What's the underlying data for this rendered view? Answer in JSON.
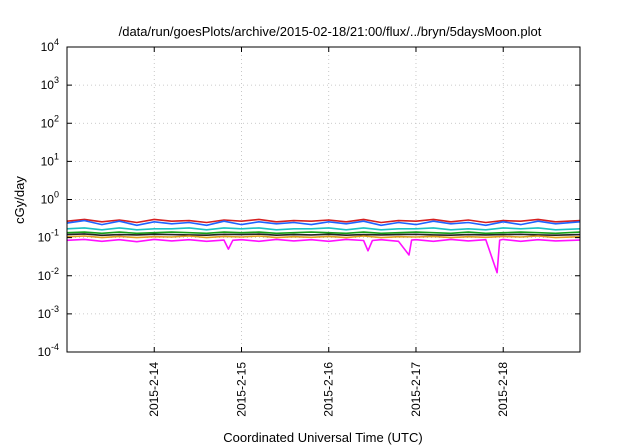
{
  "chart_data": {
    "type": "line",
    "title": "/data/run/goesPlots/archive/2015-02-18/21:00/flux/../bryn/5daysMoon.plot",
    "xlabel": "Coordinated Universal Time (UTC)",
    "ylabel": "cGy/day",
    "yscale": "log",
    "ylim": [
      0.0001,
      10000
    ],
    "xlim": [
      0.0,
      5.88
    ],
    "x_ticks": [
      {
        "value": 1.0,
        "label": "2015-2-14"
      },
      {
        "value": 2.0,
        "label": "2015-2-15"
      },
      {
        "value": 3.0,
        "label": "2015-2-16"
      },
      {
        "value": 4.0,
        "label": "2015-2-17"
      },
      {
        "value": 5.0,
        "label": "2015-2-18"
      }
    ],
    "y_ticks": [
      {
        "value": 0.0001,
        "base": "10",
        "exp": "-4"
      },
      {
        "value": 0.001,
        "base": "10",
        "exp": "-3"
      },
      {
        "value": 0.01,
        "base": "10",
        "exp": "-2"
      },
      {
        "value": 0.1,
        "base": "10",
        "exp": "-1"
      },
      {
        "value": 1,
        "base": "10",
        "exp": "0"
      },
      {
        "value": 10,
        "base": "10",
        "exp": "1"
      },
      {
        "value": 100,
        "base": "10",
        "exp": "2"
      },
      {
        "value": 1000,
        "base": "10",
        "exp": "3"
      },
      {
        "value": 10000,
        "base": "10",
        "exp": "4"
      }
    ],
    "grid": true,
    "series": [
      {
        "color": "#d62020",
        "x": [
          0.0,
          0.2,
          0.4,
          0.6,
          0.8,
          1.0,
          1.2,
          1.4,
          1.6,
          1.8,
          2.0,
          2.2,
          2.4,
          2.6,
          2.8,
          3.0,
          3.2,
          3.4,
          3.6,
          3.8,
          4.0,
          4.2,
          4.4,
          4.6,
          4.8,
          5.0,
          5.2,
          5.4,
          5.6,
          5.88
        ],
        "values": [
          0.27,
          0.3,
          0.26,
          0.29,
          0.25,
          0.3,
          0.27,
          0.28,
          0.25,
          0.29,
          0.27,
          0.3,
          0.26,
          0.28,
          0.27,
          0.29,
          0.26,
          0.3,
          0.25,
          0.28,
          0.27,
          0.3,
          0.26,
          0.29,
          0.25,
          0.28,
          0.27,
          0.3,
          0.26,
          0.28
        ]
      },
      {
        "color": "#1e64ff",
        "x": [
          0.0,
          0.2,
          0.4,
          0.6,
          0.8,
          1.0,
          1.2,
          1.4,
          1.6,
          1.8,
          2.0,
          2.2,
          2.4,
          2.6,
          2.8,
          3.0,
          3.2,
          3.4,
          3.6,
          3.8,
          4.0,
          4.2,
          4.4,
          4.6,
          4.8,
          5.0,
          5.2,
          5.4,
          5.6,
          5.88
        ],
        "values": [
          0.24,
          0.28,
          0.22,
          0.27,
          0.21,
          0.26,
          0.23,
          0.25,
          0.21,
          0.27,
          0.22,
          0.26,
          0.23,
          0.25,
          0.22,
          0.26,
          0.23,
          0.27,
          0.21,
          0.25,
          0.22,
          0.27,
          0.23,
          0.25,
          0.21,
          0.26,
          0.22,
          0.27,
          0.23,
          0.26
        ]
      },
      {
        "color": "#19c2c2",
        "x": [
          0.0,
          0.2,
          0.4,
          0.6,
          0.8,
          1.0,
          1.2,
          1.4,
          1.6,
          1.8,
          2.0,
          2.2,
          2.4,
          2.6,
          2.8,
          3.0,
          3.2,
          3.4,
          3.6,
          3.8,
          4.0,
          4.2,
          4.4,
          4.6,
          4.8,
          5.0,
          5.2,
          5.4,
          5.6,
          5.88
        ],
        "values": [
          0.17,
          0.18,
          0.16,
          0.18,
          0.16,
          0.17,
          0.17,
          0.18,
          0.16,
          0.18,
          0.17,
          0.18,
          0.16,
          0.17,
          0.17,
          0.18,
          0.16,
          0.18,
          0.16,
          0.17,
          0.17,
          0.18,
          0.16,
          0.17,
          0.16,
          0.18,
          0.17,
          0.18,
          0.16,
          0.17
        ]
      },
      {
        "color": "#18a018",
        "x": [
          0.0,
          0.2,
          0.4,
          0.6,
          0.8,
          1.0,
          1.2,
          1.4,
          1.6,
          1.8,
          2.0,
          2.2,
          2.4,
          2.6,
          2.8,
          3.0,
          3.2,
          3.4,
          3.6,
          3.8,
          4.0,
          4.2,
          4.4,
          4.6,
          4.8,
          5.0,
          5.2,
          5.4,
          5.6,
          5.88
        ],
        "values": [
          0.135,
          0.14,
          0.13,
          0.14,
          0.13,
          0.135,
          0.14,
          0.135,
          0.13,
          0.14,
          0.135,
          0.14,
          0.13,
          0.135,
          0.14,
          0.135,
          0.13,
          0.14,
          0.13,
          0.135,
          0.14,
          0.135,
          0.13,
          0.14,
          0.13,
          0.135,
          0.14,
          0.135,
          0.13,
          0.14
        ]
      },
      {
        "color": "#222222",
        "x": [
          0.0,
          0.2,
          0.4,
          0.6,
          0.8,
          1.0,
          1.2,
          1.4,
          1.6,
          1.8,
          2.0,
          2.2,
          2.4,
          2.6,
          2.8,
          3.0,
          3.2,
          3.4,
          3.6,
          3.8,
          4.0,
          4.2,
          4.4,
          4.6,
          4.8,
          5.0,
          5.2,
          5.4,
          5.6,
          5.88
        ],
        "values": [
          0.12,
          0.125,
          0.115,
          0.12,
          0.118,
          0.122,
          0.12,
          0.118,
          0.116,
          0.122,
          0.12,
          0.124,
          0.116,
          0.12,
          0.118,
          0.122,
          0.116,
          0.12,
          0.118,
          0.12,
          0.122,
          0.118,
          0.116,
          0.12,
          0.118,
          0.12,
          0.122,
          0.118,
          0.116,
          0.12
        ]
      },
      {
        "color": "#e0a020",
        "x": [
          0.0,
          0.2,
          0.4,
          0.6,
          0.8,
          1.0,
          1.2,
          1.4,
          1.6,
          1.8,
          2.0,
          2.2,
          2.4,
          2.6,
          2.8,
          3.0,
          3.2,
          3.4,
          3.6,
          3.8,
          4.0,
          4.2,
          4.4,
          4.6,
          4.8,
          5.0,
          5.2,
          5.4,
          5.6,
          5.88
        ],
        "values": [
          0.105,
          0.11,
          0.1,
          0.108,
          0.1,
          0.106,
          0.104,
          0.11,
          0.1,
          0.108,
          0.104,
          0.11,
          0.1,
          0.106,
          0.102,
          0.108,
          0.1,
          0.11,
          0.1,
          0.106,
          0.104,
          0.108,
          0.1,
          0.106,
          0.102,
          0.108,
          0.104,
          0.11,
          0.1,
          0.106
        ]
      },
      {
        "color": "#ff10ff",
        "x": [
          0.0,
          0.2,
          0.4,
          0.6,
          0.8,
          1.0,
          1.2,
          1.4,
          1.6,
          1.8,
          1.85,
          1.9,
          2.0,
          2.2,
          2.4,
          2.6,
          2.8,
          3.0,
          3.2,
          3.4,
          3.45,
          3.5,
          3.6,
          3.8,
          3.92,
          3.95,
          4.0,
          4.2,
          4.4,
          4.6,
          4.8,
          4.93,
          4.96,
          5.0,
          5.2,
          5.4,
          5.6,
          5.88
        ],
        "values": [
          0.085,
          0.09,
          0.08,
          0.088,
          0.078,
          0.09,
          0.082,
          0.088,
          0.08,
          0.086,
          0.05,
          0.085,
          0.088,
          0.08,
          0.09,
          0.082,
          0.088,
          0.08,
          0.09,
          0.084,
          0.045,
          0.084,
          0.088,
          0.08,
          0.035,
          0.086,
          0.088,
          0.08,
          0.09,
          0.082,
          0.088,
          0.012,
          0.086,
          0.09,
          0.08,
          0.088,
          0.082,
          0.086
        ]
      }
    ]
  }
}
